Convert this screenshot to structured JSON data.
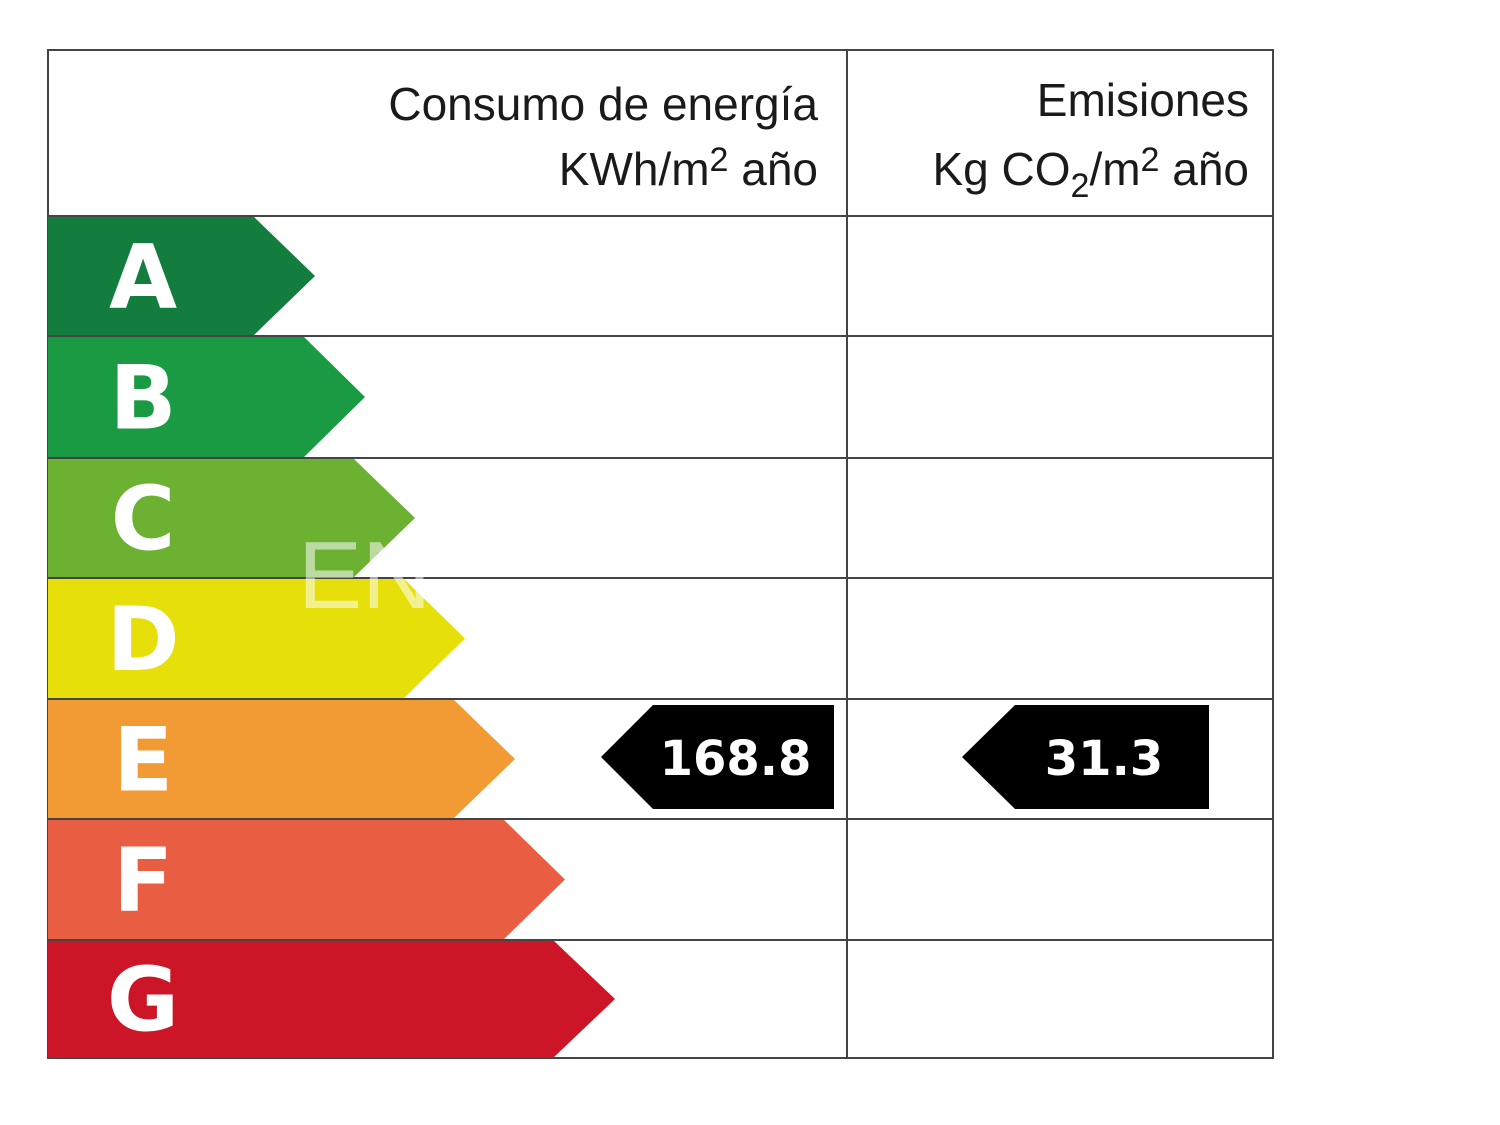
{
  "header": {
    "energy_line1": "Consumo de energía",
    "energy_line2_a": "KWh/m",
    "energy_line2_sup": "2",
    "energy_line2_b": " año",
    "emissions_line1": "Emisiones",
    "emissions_line2_a": "Kg CO",
    "emissions_line2_sub": "2",
    "emissions_line2_b": "/m",
    "emissions_line2_sup": "2",
    "emissions_line2_c": " año"
  },
  "classes": [
    {
      "letter": "A",
      "color": "#137d3d"
    },
    {
      "letter": "B",
      "color": "#1a9b43"
    },
    {
      "letter": "C",
      "color": "#6cb131"
    },
    {
      "letter": "D",
      "color": "#e6df0a"
    },
    {
      "letter": "E",
      "color": "#f29a34"
    },
    {
      "letter": "F",
      "color": "#e95d42"
    },
    {
      "letter": "G",
      "color": "#cc1627"
    }
  ],
  "rating": {
    "class": "E",
    "energy_value": "168.8",
    "emissions_value": "31.3",
    "marker_color": "#000000"
  },
  "watermark": "EN"
}
